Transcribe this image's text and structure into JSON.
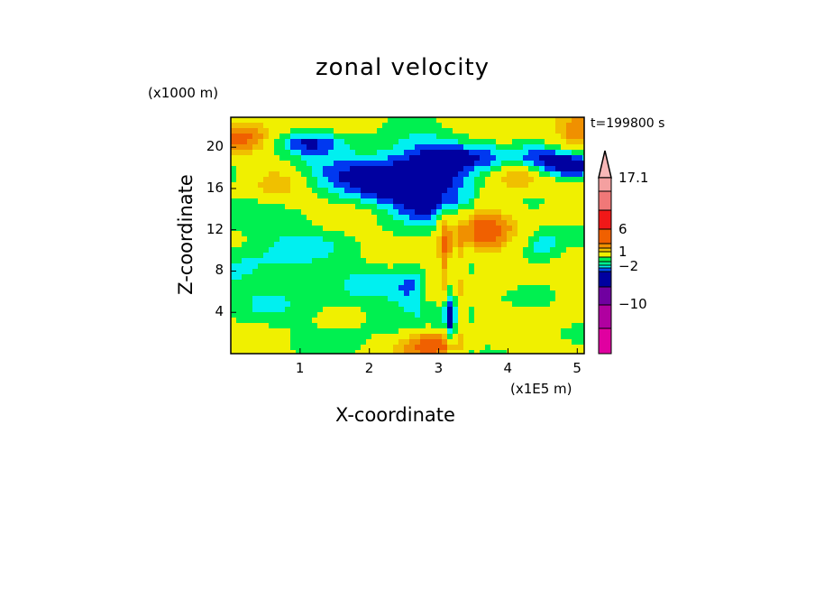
{
  "chart_data": {
    "type": "heatmap",
    "title": "zonal velocity",
    "xlabel": "X-coordinate",
    "ylabel": "Z-coordinate",
    "x_unit": "(x1E5 m)",
    "y_unit": "(x1000 m)",
    "time_label": "t=199800 s",
    "xlim": [
      0,
      5.1
    ],
    "ylim": [
      0,
      22.9
    ],
    "xticks": [
      "1",
      "2",
      "3",
      "4",
      "5"
    ],
    "xtick_values": [
      1,
      2,
      3,
      4,
      5
    ],
    "yticks": [
      "4",
      "8",
      "12",
      "16",
      "20"
    ],
    "ytick_values": [
      4,
      8,
      12,
      16,
      20
    ],
    "colorbar": {
      "labels": [
        "17.1",
        "6",
        "1",
        "−2",
        "−10"
      ],
      "label_values": [
        17.1,
        6,
        1,
        -2,
        -10
      ],
      "colors_top_to_bottom": [
        "#f8b8b8",
        "#f4a0a0",
        "#f07878",
        "#f01818",
        "#f06000",
        "#f09000",
        "#f0c000",
        "#f0f000",
        "#00f050",
        "#00f090",
        "#00f0f0",
        "#0050f0",
        "#0000a0",
        "#7000a0",
        "#b000a0",
        "#e000a0"
      ]
    },
    "field_palette": [
      "#0000a0",
      "#0038f0",
      "#00f0f0",
      "#00f050",
      "#f0f000",
      "#f0c000",
      "#f09000",
      "#f06000",
      "#f01818"
    ]
  }
}
